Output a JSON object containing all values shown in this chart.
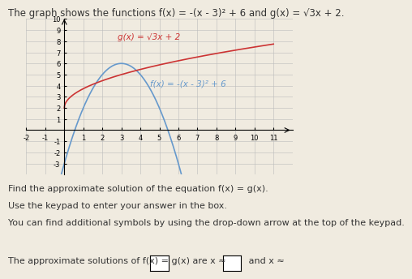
{
  "title": "The graph shows the functions f(x) = -(x - 3)² + 6 and g(x) = √3x + 2.",
  "f_label": "f(x) = -(x - 3)² + 6",
  "g_label": "g(x) = √3x + 2",
  "f_color": "#6699cc",
  "g_color": "#cc3333",
  "xlim": [
    -2,
    12
  ],
  "ylim": [
    -4,
    10
  ],
  "xticks": [
    -2,
    -1,
    1,
    2,
    3,
    4,
    5,
    6,
    7,
    8,
    9,
    10,
    11
  ],
  "yticks": [
    -3,
    -2,
    -1,
    1,
    2,
    3,
    4,
    5,
    6,
    7,
    8,
    9,
    10
  ],
  "grid_color": "#bbbbbb",
  "background_color": "#f0ebe0",
  "title_fontsize": 8.5,
  "label_fontsize": 7.5,
  "tick_fontsize": 6,
  "text1": "Find the approximate solution of the equation f(x) = g(x).",
  "text2": "Use the keypad to enter your answer in the box.",
  "text3": "You can find additional symbols by using the drop-down arrow at the top of the keypad.",
  "text4": "The approximate solutions of f(x) = g(x) are x ≈",
  "text_fontsize": 8,
  "text_color": "#333333"
}
